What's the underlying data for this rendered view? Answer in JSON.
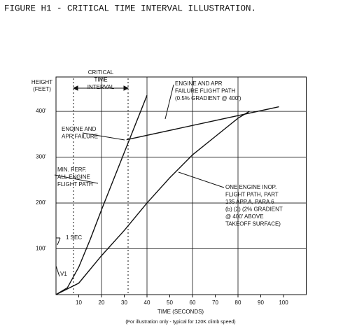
{
  "chart_data": {
    "type": "line",
    "title": "FIGURE H1 - CRITICAL TIME INTERVAL ILLUSTRATION.",
    "x_label": "TIME (SECONDS)",
    "subtitle": "(For illustration only - typical for 120K climb speed)",
    "y_label": [
      "HEIGHT",
      "(FEET)"
    ],
    "xlim": [
      0,
      110
    ],
    "ylim": [
      0,
      475
    ],
    "xticks": [
      10,
      20,
      30,
      40,
      50,
      60,
      70,
      80,
      90,
      100
    ],
    "yticks": [
      {
        "value": 100,
        "label": "100'"
      },
      {
        "value": 200,
        "label": "200'"
      },
      {
        "value": 300,
        "label": "300'"
      },
      {
        "value": 400,
        "label": "400'"
      }
    ],
    "color": "#111111",
    "series": [
      {
        "name": "MIN. PERF. ALL ENGINE FLIGHT PATH",
        "x": [
          0,
          5,
          10,
          15,
          20,
          30,
          40
        ],
        "values": [
          0,
          15,
          60,
          120,
          185,
          310,
          435
        ]
      },
      {
        "name": "ENGINE AND APR FAILURE FLIGHT PATH",
        "x": [
          31,
          98
        ],
        "values": [
          338,
          410
        ]
      },
      {
        "name": "ONE ENGINE INOP. FLIGHT PATH",
        "x": [
          0,
          10,
          20,
          30,
          40,
          50,
          60,
          70,
          80,
          85
        ],
        "values": [
          0,
          25,
          85,
          140,
          200,
          255,
          305,
          345,
          385,
          400
        ]
      }
    ],
    "annotations": {
      "critical": [
        "CRITICAL",
        "TIME",
        "INTERVAL"
      ],
      "failure": [
        "ENGINE AND",
        "APR FAILURE"
      ],
      "min_perf": [
        "MIN. PERF.",
        "ALL ENGINE",
        "FLIGHT PATH"
      ],
      "apr_path": [
        "ENGINE AND APR",
        "FAILURE FLIGHT PATH",
        "(0.5% GRADIENT @ 400')"
      ],
      "one_engine": [
        "ONE ENGINE INOP.",
        "FLIGHT PATH,  PART",
        "135 APP.A, PARA 6",
        "(b) (2)  (2% GRADIENT",
        "@ 400' ABOVE",
        "TAKEOFF SURFACE)"
      ],
      "one_sec": "1 SEC",
      "v1": "V1"
    }
  }
}
